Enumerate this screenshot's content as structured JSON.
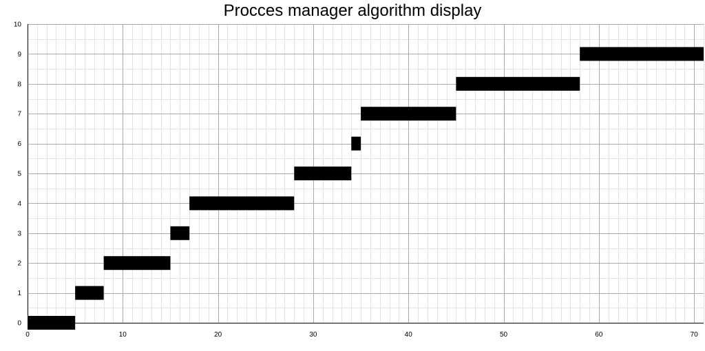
{
  "chart_data": {
    "type": "bar",
    "orientation": "horizontal-gantt",
    "title": "Procces manager algorithm display",
    "xlabel": "",
    "ylabel": "",
    "xlim": [
      0,
      71
    ],
    "ylim": [
      0,
      10
    ],
    "x_ticks": [
      0,
      10,
      20,
      30,
      40,
      50,
      60,
      70
    ],
    "y_ticks": [
      0,
      1,
      2,
      3,
      4,
      5,
      6,
      7,
      8,
      9,
      10
    ],
    "grid": {
      "major": true,
      "minor": true
    },
    "bar_color": "#000000",
    "bars": [
      {
        "process": 0,
        "start": 0,
        "end": 5
      },
      {
        "process": 1,
        "start": 5,
        "end": 8
      },
      {
        "process": 2,
        "start": 8,
        "end": 15
      },
      {
        "process": 3,
        "start": 15,
        "end": 17
      },
      {
        "process": 4,
        "start": 17,
        "end": 28
      },
      {
        "process": 5,
        "start": 28,
        "end": 34
      },
      {
        "process": 6,
        "start": 34,
        "end": 35
      },
      {
        "process": 7,
        "start": 35,
        "end": 45
      },
      {
        "process": 8,
        "start": 45,
        "end": 58
      },
      {
        "process": 9,
        "start": 58,
        "end": 71
      }
    ]
  }
}
